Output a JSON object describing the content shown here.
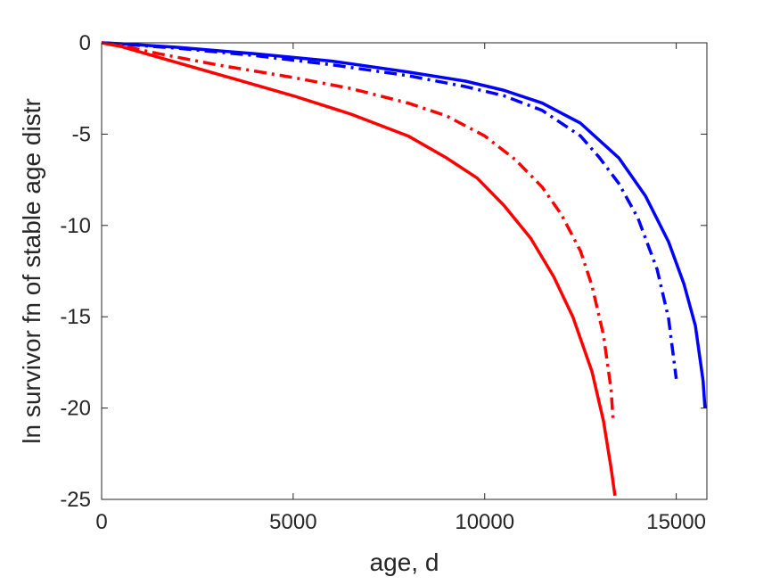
{
  "chart_data": {
    "type": "line",
    "title": "",
    "xlabel": "age, d",
    "ylabel": "ln survivor fn of stable age distr",
    "xlim": [
      0,
      15800
    ],
    "ylim": [
      -25,
      0
    ],
    "xticks": [
      0,
      5000,
      10000,
      15000
    ],
    "yticks": [
      0,
      -5,
      -10,
      -15,
      -20,
      -25
    ],
    "xtick_labels": [
      "0",
      "5000",
      "10000",
      "15000"
    ],
    "ytick_labels": [
      "0",
      "-5",
      "-10",
      "-15",
      "-20",
      "-25"
    ],
    "grid": false,
    "box": true,
    "series": [
      {
        "color": "#0000ff",
        "style": "solid",
        "x": [
          0,
          500,
          2000,
          4000,
          6000,
          8000,
          9500,
          10500,
          11500,
          12500,
          13500,
          14200,
          14800,
          15200,
          15500,
          15700,
          15750
        ],
        "y": [
          0,
          -0.05,
          -0.25,
          -0.6,
          -1.0,
          -1.6,
          -2.1,
          -2.6,
          -3.3,
          -4.4,
          -6.3,
          -8.4,
          -10.9,
          -13.2,
          -15.5,
          -18.5,
          -20.0
        ]
      },
      {
        "color": "#0000ff",
        "style": "dashdot",
        "x": [
          0,
          500,
          2000,
          4000,
          6000,
          8000,
          9500,
          10500,
          11500,
          12500,
          13000,
          13500,
          14000,
          14500,
          14800,
          15000
        ],
        "y": [
          0,
          -0.07,
          -0.3,
          -0.7,
          -1.2,
          -1.8,
          -2.4,
          -2.9,
          -3.7,
          -5.1,
          -6.3,
          -7.7,
          -9.6,
          -12.4,
          -15.1,
          -18.4
        ]
      },
      {
        "color": "#ff0000",
        "style": "dashdot",
        "x": [
          0,
          500,
          1500,
          3000,
          5000,
          6500,
          8000,
          9000,
          10000,
          10800,
          11500,
          12000,
          12500,
          12800,
          13100,
          13300,
          13350
        ],
        "y": [
          0,
          -0.15,
          -0.6,
          -1.2,
          -1.9,
          -2.5,
          -3.3,
          -4.0,
          -5.1,
          -6.4,
          -7.9,
          -9.4,
          -11.4,
          -13.3,
          -16.0,
          -19.0,
          -20.6
        ]
      },
      {
        "color": "#ff0000",
        "style": "solid",
        "x": [
          0,
          500,
          1500,
          3000,
          5000,
          6500,
          8000,
          9000,
          9800,
          10500,
          11200,
          11800,
          12300,
          12800,
          13100,
          13300,
          13400
        ],
        "y": [
          0,
          -0.2,
          -0.8,
          -1.7,
          -2.9,
          -3.9,
          -5.1,
          -6.3,
          -7.4,
          -8.9,
          -10.7,
          -12.8,
          -15.0,
          -18.0,
          -20.7,
          -23.3,
          -24.8
        ]
      }
    ]
  }
}
